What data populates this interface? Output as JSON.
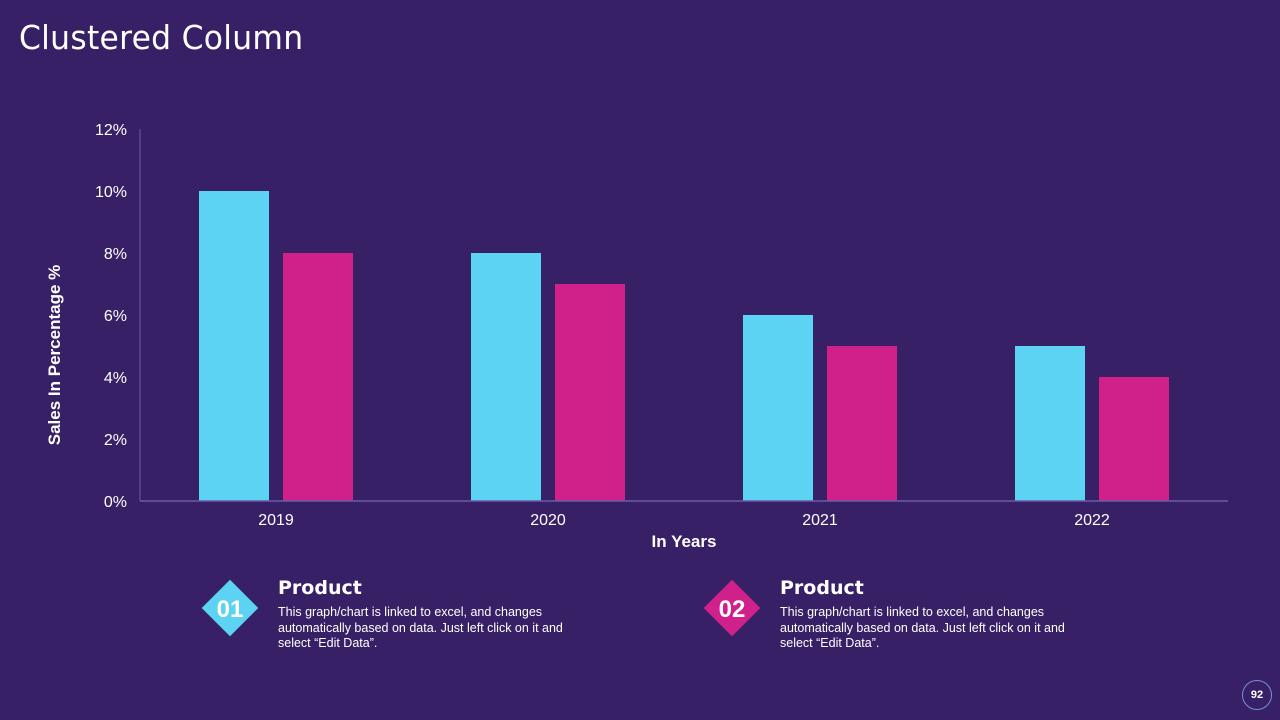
{
  "slide": {
    "title": "Clustered Column",
    "page_number": "92"
  },
  "colors": {
    "background": "#372065",
    "series1": "#5dd3f3",
    "series2": "#d0218b",
    "axis": "#6b5aa8"
  },
  "cards": [
    {
      "number": "01",
      "heading": "Product",
      "text": "This graph/chart is linked to excel, and changes automatically based on data. Just left click on it and select “Edit Data”.",
      "color": "#5dd3f3"
    },
    {
      "number": "02",
      "heading": "Product",
      "text": "This graph/chart is linked to excel, and changes automatically based on data. Just left click on it and select “Edit Data”.",
      "color": "#d0218b"
    }
  ],
  "chart_data": {
    "type": "bar",
    "title": "Clustered Column",
    "xlabel": "In Years",
    "ylabel": "Sales In Percentage %",
    "categories": [
      "2019",
      "2020",
      "2021",
      "2022"
    ],
    "series": [
      {
        "name": "Product 01",
        "values": [
          10,
          8,
          6,
          5
        ]
      },
      {
        "name": "Product 02",
        "values": [
          8,
          7,
          5,
          4
        ]
      }
    ],
    "ylim": [
      0,
      12
    ],
    "yticks": [
      0,
      2,
      4,
      6,
      8,
      10,
      12
    ],
    "ytick_labels": [
      "0%",
      "2%",
      "4%",
      "6%",
      "8%",
      "10%",
      "12%"
    ],
    "grid": false,
    "legend": "none"
  }
}
